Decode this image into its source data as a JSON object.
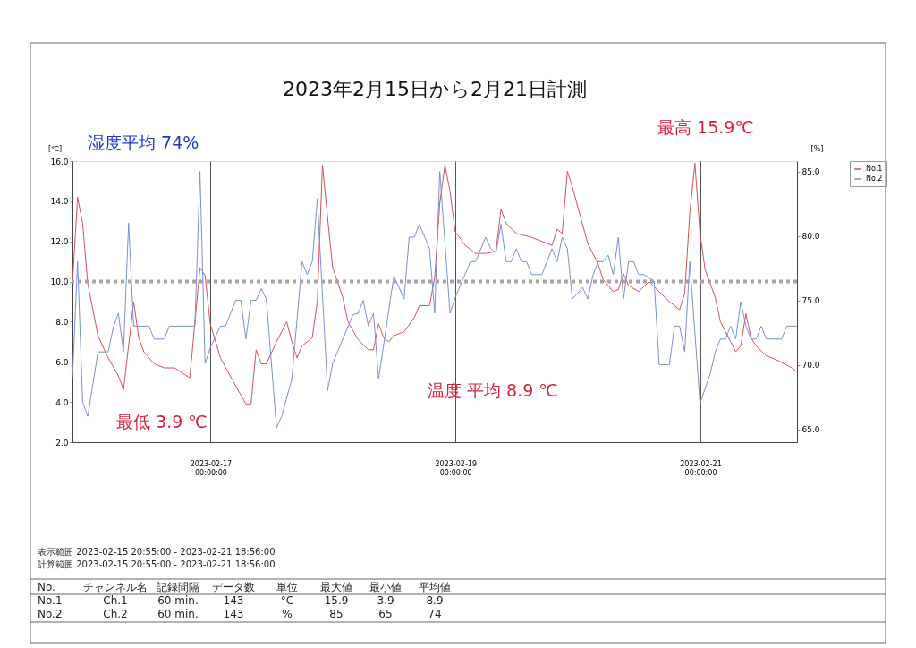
{
  "chart_data": {
    "type": "line",
    "title": "2023年2月15日から2月21日計測",
    "ylabel": "[℃]",
    "y2label": "[%]",
    "series": [
      {
        "name": "No.1",
        "color": "#d0525a",
        "x": [
          "2023-02-15T20:55",
          "2023-02-15T21:55",
          "2023-02-15T22:55",
          "2023-02-15T23:55",
          "2023-02-16T01:55",
          "2023-02-16T03:55",
          "2023-02-16T05:55",
          "2023-02-16T06:55",
          "2023-02-16T08:55",
          "2023-02-16T09:55",
          "2023-02-16T10:55",
          "2023-02-16T12:55",
          "2023-02-16T14:55",
          "2023-02-16T16:55",
          "2023-02-16T19:55",
          "2023-02-16T21:55",
          "2023-02-16T22:55",
          "2023-02-16T23:55",
          "2023-02-17T01:55",
          "2023-02-17T04:55",
          "2023-02-17T06:55",
          "2023-02-17T07:55",
          "2023-02-17T08:55",
          "2023-02-17T09:55",
          "2023-02-17T10:55",
          "2023-02-17T12:55",
          "2023-02-17T14:55",
          "2023-02-17T15:55",
          "2023-02-17T16:55",
          "2023-02-17T17:55",
          "2023-02-17T19:55",
          "2023-02-17T20:55",
          "2023-02-17T21:55",
          "2023-02-17T22:55",
          "2023-02-17T23:55",
          "2023-02-18T01:55",
          "2023-02-18T02:55",
          "2023-02-18T04:55",
          "2023-02-18T06:55",
          "2023-02-18T07:55",
          "2023-02-18T08:55",
          "2023-02-18T09:55",
          "2023-02-18T10:55",
          "2023-02-18T11:55",
          "2023-02-18T13:55",
          "2023-02-18T15:55",
          "2023-02-18T16:55",
          "2023-02-18T18:55",
          "2023-02-18T19:55",
          "2023-02-18T20:55",
          "2023-02-18T21:55",
          "2023-02-18T22:55",
          "2023-02-18T23:55",
          "2023-02-19T01:55",
          "2023-02-19T03:55",
          "2023-02-19T05:55",
          "2023-02-19T07:55",
          "2023-02-19T08:55",
          "2023-02-19T09:55",
          "2023-02-19T11:55",
          "2023-02-19T14:55",
          "2023-02-19T16:55",
          "2023-02-19T18:55",
          "2023-02-19T19:55",
          "2023-02-19T20:55",
          "2023-02-19T21:55",
          "2023-02-19T22:55",
          "2023-02-20T01:55",
          "2023-02-20T03:55",
          "2023-02-20T04:55",
          "2023-02-20T06:55",
          "2023-02-20T07:55",
          "2023-02-20T08:55",
          "2023-02-20T09:55",
          "2023-02-20T11:55",
          "2023-02-20T13:55",
          "2023-02-20T15:55",
          "2023-02-20T17:55",
          "2023-02-20T19:55",
          "2023-02-20T20:55",
          "2023-02-20T21:55",
          "2023-02-20T22:55",
          "2023-02-20T23:55",
          "2023-02-21T00:55",
          "2023-02-21T02:55",
          "2023-02-21T03:55",
          "2023-02-21T05:55",
          "2023-02-21T06:55",
          "2023-02-21T07:55",
          "2023-02-21T08:55",
          "2023-02-21T09:55",
          "2023-02-21T10:55",
          "2023-02-21T12:55",
          "2023-02-21T14:55",
          "2023-02-21T17:55",
          "2023-02-21T18:55"
        ],
        "values": [
          9.9,
          14.2,
          12.9,
          9.9,
          7.3,
          6.2,
          5.3,
          4.6,
          9.0,
          7.2,
          6.5,
          5.9,
          5.7,
          5.7,
          5.2,
          10.7,
          10.3,
          7.9,
          6.2,
          4.8,
          3.9,
          3.9,
          6.6,
          5.9,
          5.9,
          7.0,
          8.0,
          7.0,
          6.2,
          6.8,
          7.2,
          9.0,
          15.8,
          13.2,
          10.7,
          9.2,
          8.0,
          7.1,
          6.6,
          6.6,
          7.9,
          7.2,
          7.0,
          7.3,
          7.5,
          8.2,
          8.8,
          8.8,
          10.2,
          13.9,
          15.8,
          14.5,
          12.5,
          11.8,
          11.4,
          11.4,
          11.5,
          13.6,
          12.9,
          12.4,
          12.2,
          12.0,
          11.8,
          12.6,
          12.4,
          15.5,
          14.7,
          11.9,
          10.9,
          10.1,
          9.5,
          9.6,
          10.4,
          9.8,
          9.5,
          10.0,
          9.5,
          9.0,
          8.6,
          9.4,
          13.4,
          15.9,
          12.4,
          10.6,
          9.2,
          8.0,
          7.0,
          6.5,
          6.8,
          8.4,
          7.2,
          6.8,
          6.3,
          6.1,
          5.7,
          5.5
        ]
      },
      {
        "name": "No.2",
        "color": "#7890d0",
        "axis": "y2",
        "x": [
          "2023-02-15T20:55",
          "2023-02-15T21:55",
          "2023-02-15T22:55",
          "2023-02-15T23:55",
          "2023-02-16T00:55",
          "2023-02-16T01:55",
          "2023-02-16T03:55",
          "2023-02-16T04:55",
          "2023-02-16T05:55",
          "2023-02-16T06:55",
          "2023-02-16T07:55",
          "2023-02-16T08:55",
          "2023-02-16T11:55",
          "2023-02-16T12:55",
          "2023-02-16T14:55",
          "2023-02-16T15:55",
          "2023-02-16T20:55",
          "2023-02-16T21:55",
          "2023-02-16T22:55",
          "2023-02-16T23:55",
          "2023-02-17T01:55",
          "2023-02-17T02:55",
          "2023-02-17T04:55",
          "2023-02-17T05:55",
          "2023-02-17T06:55",
          "2023-02-17T07:55",
          "2023-02-17T08:55",
          "2023-02-17T09:55",
          "2023-02-17T10:55",
          "2023-02-17T12:55",
          "2023-02-17T13:55",
          "2023-02-17T15:55",
          "2023-02-17T17:55",
          "2023-02-17T18:55",
          "2023-02-17T19:55",
          "2023-02-17T20:55",
          "2023-02-17T22:55",
          "2023-02-17T23:55",
          "2023-02-18T03:55",
          "2023-02-18T04:55",
          "2023-02-18T05:55",
          "2023-02-18T06:55",
          "2023-02-18T07:55",
          "2023-02-18T08:55",
          "2023-02-18T11:55",
          "2023-02-18T13:55",
          "2023-02-18T14:55",
          "2023-02-18T15:55",
          "2023-02-18T16:55",
          "2023-02-18T18:55",
          "2023-02-18T19:55",
          "2023-02-18T20:55",
          "2023-02-18T22:55",
          "2023-02-18T23:55",
          "2023-02-19T02:55",
          "2023-02-19T03:55",
          "2023-02-19T05:55",
          "2023-02-19T06:55",
          "2023-02-19T07:55",
          "2023-02-19T08:55",
          "2023-02-19T09:55",
          "2023-02-19T10:55",
          "2023-02-19T11:55",
          "2023-02-19T12:55",
          "2023-02-19T13:55",
          "2023-02-19T14:55",
          "2023-02-19T16:55",
          "2023-02-19T18:55",
          "2023-02-19T19:55",
          "2023-02-19T20:55",
          "2023-02-19T21:55",
          "2023-02-19T22:55",
          "2023-02-20T00:55",
          "2023-02-20T01:55",
          "2023-02-20T02:55",
          "2023-02-20T03:55",
          "2023-02-20T04:55",
          "2023-02-20T05:55",
          "2023-02-20T06:55",
          "2023-02-20T07:55",
          "2023-02-20T08:55",
          "2023-02-20T09:55",
          "2023-02-20T10:55",
          "2023-02-20T11:55",
          "2023-02-20T12:55",
          "2023-02-20T14:55",
          "2023-02-20T15:55",
          "2023-02-20T17:55",
          "2023-02-20T18:55",
          "2023-02-20T19:55",
          "2023-02-20T20:55",
          "2023-02-20T21:55",
          "2023-02-20T23:55",
          "2023-02-21T01:55",
          "2023-02-21T02:55",
          "2023-02-21T03:55",
          "2023-02-21T04:55",
          "2023-02-21T05:55",
          "2023-02-21T06:55",
          "2023-02-21T07:55",
          "2023-02-21T08:55",
          "2023-02-21T09:55",
          "2023-02-21T10:55",
          "2023-02-21T11:55",
          "2023-02-21T12:55",
          "2023-02-21T15:55",
          "2023-02-21T16:55",
          "2023-02-21T18:55"
        ],
        "values": [
          68.9,
          78.0,
          67.1,
          66.0,
          68.5,
          71.0,
          71.0,
          72.9,
          74.0,
          71.0,
          81.0,
          73.0,
          73.0,
          72.0,
          72.0,
          73.0,
          73.0,
          85.0,
          70.1,
          71.3,
          73.0,
          73.0,
          75.0,
          75.0,
          72.0,
          75.0,
          75.0,
          75.9,
          75.1,
          65.1,
          66.0,
          68.9,
          78.0,
          77.0,
          78.0,
          82.9,
          68.0,
          70.1,
          73.9,
          74.0,
          75.0,
          73.0,
          74.0,
          68.9,
          76.9,
          75.1,
          79.9,
          79.9,
          80.9,
          79.0,
          74.0,
          85.0,
          74.0,
          75.2,
          78.0,
          78.0,
          79.9,
          79.0,
          78.7,
          80.9,
          78.0,
          78.0,
          79.0,
          78.0,
          78.0,
          77.0,
          77.0,
          79.0,
          78.0,
          79.9,
          79.0,
          75.1,
          76.0,
          75.1,
          76.9,
          78.0,
          78.0,
          78.5,
          77.0,
          79.9,
          75.1,
          78.0,
          78.0,
          77.0,
          77.0,
          76.5,
          70.0,
          70.0,
          73.0,
          73.0,
          71.0,
          78.0,
          67.0,
          69.3,
          71.0,
          72.0,
          72.0,
          73.0,
          72.0,
          74.9,
          73.0,
          72.0,
          72.0,
          73.0,
          72.0,
          72.0,
          73.0,
          73.0
        ]
      }
    ],
    "xlim": [
      "2023-02-15T20:55",
      "2023-02-21T18:56"
    ],
    "xticks": [
      {
        "value": "2023-02-17T00:00",
        "label": "2023-02-17 00:00:00"
      },
      {
        "value": "2023-02-19T00:00",
        "label": "2023-02-19 00:00:00"
      },
      {
        "value": "2023-02-21T00:00",
        "label": "2023-02-21 00:00:00"
      }
    ],
    "ylim": [
      2,
      16
    ],
    "yticks": [
      {
        "value": 2,
        "label": "2.0"
      },
      {
        "value": 4,
        "label": "4.0"
      },
      {
        "value": 6,
        "label": "6.0"
      },
      {
        "value": 8,
        "label": "8.0"
      },
      {
        "value": 10,
        "label": "10.0"
      },
      {
        "value": 12,
        "label": "12.0"
      },
      {
        "value": 14,
        "label": "14.0"
      },
      {
        "value": 16,
        "label": "16.0"
      }
    ],
    "y2lim": [
      64.0,
      85.8
    ],
    "y2ticks": [
      {
        "value": 65,
        "label": "65.0"
      },
      {
        "value": 70,
        "label": "70.0"
      },
      {
        "value": 75,
        "label": "75.0"
      },
      {
        "value": 80,
        "label": "80.0"
      },
      {
        "value": 85,
        "label": "85.0"
      }
    ],
    "ref_lines": [
      {
        "axis": "y",
        "value": 10,
        "color": "#a6a6a6",
        "line_style": "dotted"
      }
    ],
    "grid": "x",
    "legend": "right",
    "annotations": [
      "湿度平均 74%",
      "最高 15.9℃",
      "最低 3.9 ℃",
      "温度 平均 8.9 ℃",
      "表示範囲 2023-02-15 20:55:00 - 2023-02-21 18:56:00",
      "計算範囲 2023-02-15 20:55:00 - 2023-02-21 18:56:00",
      "No.",
      "チャンネル名",
      "記録間隔",
      "データ数",
      "単位",
      "最大値",
      "最小値",
      "平均値",
      "No.1",
      "Ch.1",
      "60 min.",
      "143",
      "°C",
      "15.9",
      "3.9",
      "8.9",
      "No.2",
      "Ch.2",
      "60 min.",
      "143",
      "%",
      "85",
      "65",
      "74"
    ]
  }
}
